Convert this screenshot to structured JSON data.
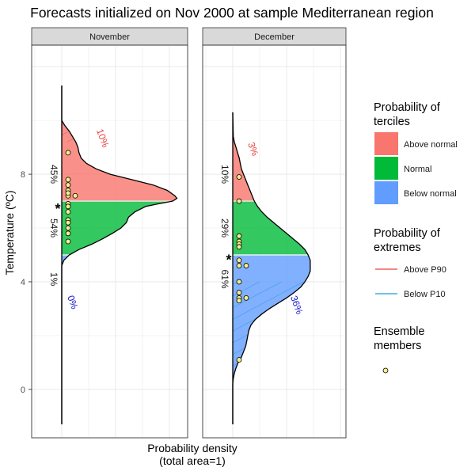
{
  "chart_data": {
    "type": "area",
    "title": "Forecasts initialized on Nov 2000 at sample Mediterranean region",
    "ylabel": "Temperature (ºC)",
    "xlabel": "Probability density\n(total area=1)",
    "ylim": [
      -1.8,
      12.8
    ],
    "yticks": [
      0,
      4,
      8
    ],
    "grid": true,
    "colors": {
      "above_normal": "#F8766D",
      "normal": "#00BA38",
      "below_normal": "#619CFF",
      "above_p90": "#E8423B",
      "below_p10": "#1B9EDB",
      "member_fill": "#F2EE8C",
      "strip_bg": "#D9D9D9"
    },
    "legend": {
      "position": "right",
      "terciles_title": "Probability of\nterciles",
      "terciles": [
        "Above normal",
        "Normal",
        "Below normal"
      ],
      "extremes_title": "Probability of\nextremes",
      "extremes": [
        "Above P90",
        "Below P10"
      ],
      "members_title": "Ensemble\nmembers"
    },
    "panels": [
      {
        "strip": "November",
        "y_range": [
          -1.3,
          11.3
        ],
        "density": [
          [
            11.3,
            0
          ],
          [
            10,
            0
          ],
          [
            9.8,
            0.03
          ],
          [
            9.6,
            0.07
          ],
          [
            9.4,
            0.1
          ],
          [
            9.2,
            0.13
          ],
          [
            9,
            0.15
          ],
          [
            8.8,
            0.16
          ],
          [
            8.6,
            0.18
          ],
          [
            8.4,
            0.23
          ],
          [
            8.2,
            0.32
          ],
          [
            8,
            0.45
          ],
          [
            7.8,
            0.65
          ],
          [
            7.6,
            0.85
          ],
          [
            7.4,
            0.98
          ],
          [
            7.2,
            1.05
          ],
          [
            7.1,
            1.07
          ],
          [
            7,
            1.03
          ],
          [
            6.9,
            0.9
          ],
          [
            6.8,
            0.78
          ],
          [
            6.6,
            0.68
          ],
          [
            6.4,
            0.62
          ],
          [
            6.2,
            0.6
          ],
          [
            6,
            0.55
          ],
          [
            5.8,
            0.47
          ],
          [
            5.6,
            0.38
          ],
          [
            5.4,
            0.28
          ],
          [
            5.2,
            0.16
          ],
          [
            5,
            0.07
          ],
          [
            4.8,
            0.02
          ],
          [
            4.6,
            0
          ],
          [
            -1.3,
            0
          ]
        ],
        "tercile_bounds": {
          "upper": 7.0,
          "lower": 5.0
        },
        "extreme_bounds": {
          "p90": 9.2,
          "p10": 4.5
        },
        "tercile_probs": {
          "above": "45%",
          "normal": "54%",
          "below": "1%"
        },
        "extreme_probs": {
          "above": "10%",
          "below": "0%"
        },
        "most_likely": "normal",
        "members": [
          8.8,
          7.8,
          7.6,
          7.4,
          7.2,
          7.3,
          7.2,
          6.9,
          6.8,
          6.6,
          6.3,
          6.2,
          6.0,
          5.8,
          5.5
        ]
      },
      {
        "strip": "December",
        "y_range": [
          -1.3,
          10.3
        ],
        "density": [
          [
            10.3,
            0
          ],
          [
            9.4,
            0.005
          ],
          [
            9.2,
            0.015
          ],
          [
            9,
            0.03
          ],
          [
            8.8,
            0.045
          ],
          [
            8.6,
            0.06
          ],
          [
            8.4,
            0.07
          ],
          [
            8.2,
            0.08
          ],
          [
            8,
            0.1
          ],
          [
            7.8,
            0.12
          ],
          [
            7.6,
            0.14
          ],
          [
            7.4,
            0.16
          ],
          [
            7.2,
            0.18
          ],
          [
            7,
            0.2
          ],
          [
            6.8,
            0.23
          ],
          [
            6.6,
            0.27
          ],
          [
            6.4,
            0.32
          ],
          [
            6.2,
            0.38
          ],
          [
            6,
            0.44
          ],
          [
            5.8,
            0.5
          ],
          [
            5.6,
            0.56
          ],
          [
            5.4,
            0.62
          ],
          [
            5.2,
            0.67
          ],
          [
            5,
            0.7
          ],
          [
            4.8,
            0.72
          ],
          [
            4.6,
            0.72
          ],
          [
            4.4,
            0.72
          ],
          [
            4.2,
            0.7
          ],
          [
            4,
            0.67
          ],
          [
            3.8,
            0.63
          ],
          [
            3.6,
            0.57
          ],
          [
            3.4,
            0.5
          ],
          [
            3.2,
            0.42
          ],
          [
            3,
            0.34
          ],
          [
            2.8,
            0.27
          ],
          [
            2.6,
            0.21
          ],
          [
            2.4,
            0.17
          ],
          [
            2.2,
            0.15
          ],
          [
            2,
            0.14
          ],
          [
            1.8,
            0.13
          ],
          [
            1.6,
            0.12
          ],
          [
            1.4,
            0.1
          ],
          [
            1.2,
            0.08
          ],
          [
            1,
            0.05
          ],
          [
            0.8,
            0.03
          ],
          [
            0.6,
            0.015
          ],
          [
            0.4,
            0.005
          ],
          [
            0.2,
            0
          ],
          [
            -1.3,
            0
          ]
        ],
        "tercile_bounds": {
          "upper": 7.0,
          "lower": 5.0
        },
        "extreme_bounds": {
          "p90": 9.4,
          "p10": 4.0
        },
        "tercile_probs": {
          "above": "10%",
          "normal": "29%",
          "below": "61%"
        },
        "extreme_probs": {
          "above": "3%",
          "below": "36%"
        },
        "most_likely": "below",
        "members": [
          7.9,
          7.0,
          5.7,
          5.5,
          5.4,
          5.3,
          4.8,
          4.6,
          4.6,
          4.0,
          3.6,
          3.4,
          3.4,
          3.3,
          1.1
        ]
      }
    ]
  }
}
